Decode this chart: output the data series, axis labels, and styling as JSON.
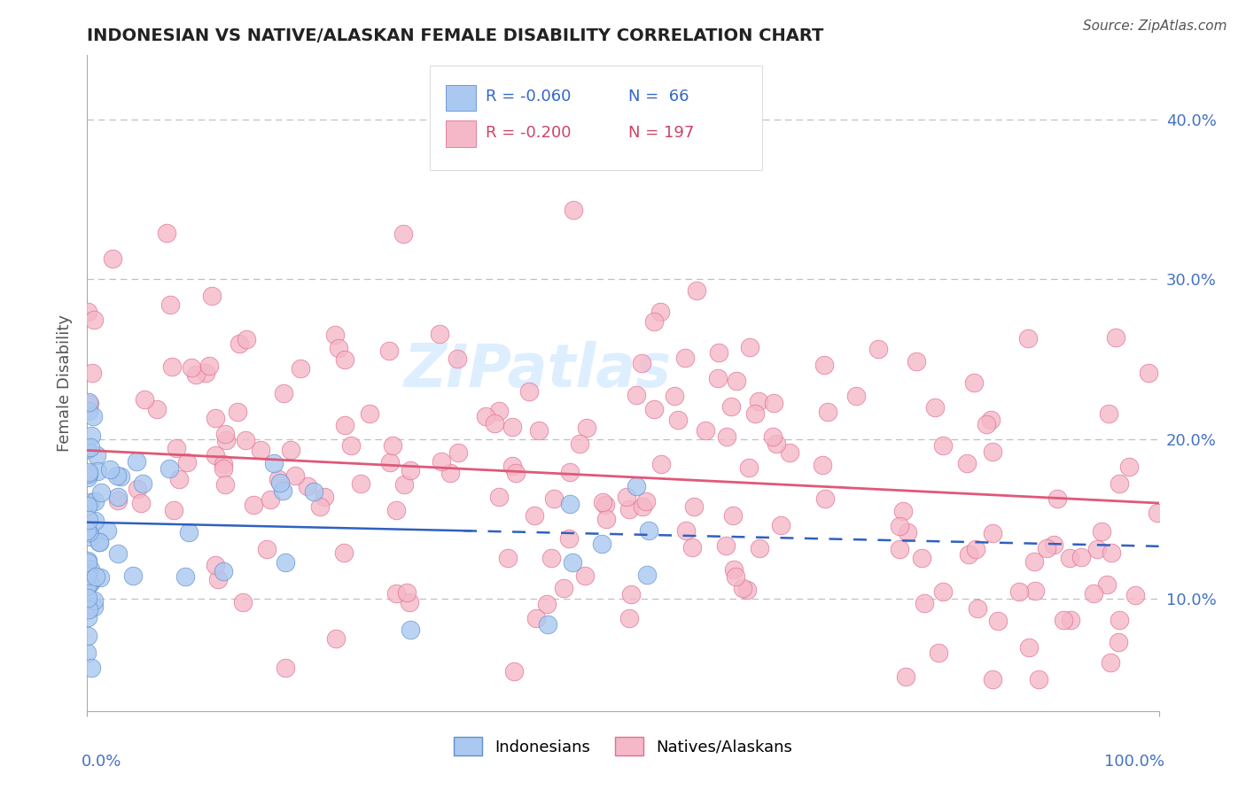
{
  "title": "INDONESIAN VS NATIVE/ALASKAN FEMALE DISABILITY CORRELATION CHART",
  "source": "Source: ZipAtlas.com",
  "ylabel": "Female Disability",
  "y_tick_labels": [
    "10.0%",
    "20.0%",
    "30.0%",
    "40.0%"
  ],
  "y_tick_values": [
    0.1,
    0.2,
    0.3,
    0.4
  ],
  "x_range": [
    0.0,
    1.0
  ],
  "y_range": [
    0.03,
    0.44
  ],
  "legend_R1": "R = -0.060",
  "legend_N1": "N =  66",
  "legend_R2": "R = -0.200",
  "legend_N2": "N = 197",
  "legend_label1": "Indonesians",
  "legend_label2": "Natives/Alaskans",
  "color_blue_fill": "#aac8f0",
  "color_blue_edge": "#6090d0",
  "color_pink_fill": "#f5b8c8",
  "color_pink_edge": "#e07090",
  "color_blue_line": "#3060c0",
  "color_pink_line": "#e05878",
  "color_dashed_line": "#c0c0c0",
  "title_color": "#222222",
  "source_color": "#555555",
  "axis_label_color": "#4472c4",
  "ylabel_color": "#555555",
  "watermark_color": "#ddeeff"
}
